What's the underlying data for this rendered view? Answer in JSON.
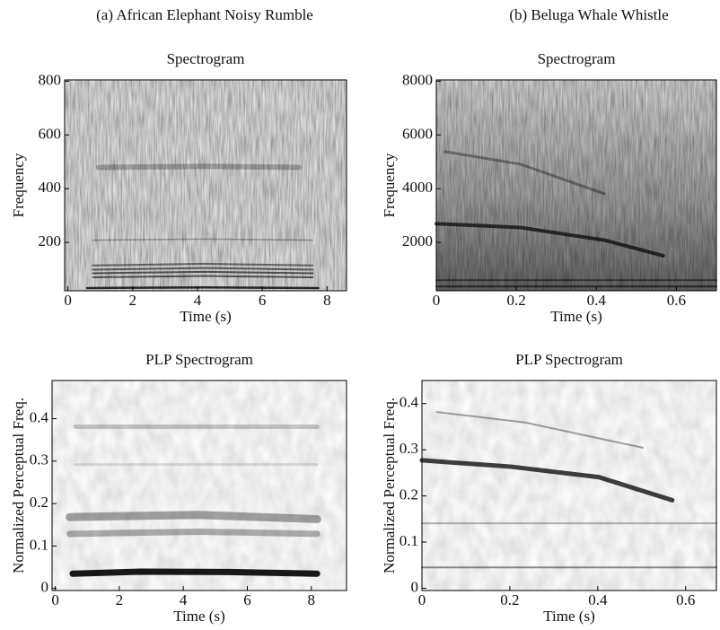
{
  "headers": [
    "(a) African Elephant Noisy Rumble",
    "(b) Beluga Whale Whistle"
  ],
  "chart_data": [
    {
      "type": "spectrogram",
      "title": "Spectrogram",
      "xlabel": "Time (s)",
      "ylabel": "Frequency",
      "xlim": [
        -0.1,
        8.6
      ],
      "xticks": [
        0,
        2,
        4,
        6,
        8
      ],
      "ylim": [
        20,
        805
      ],
      "yticks": [
        200,
        400,
        600,
        800
      ]
    },
    {
      "type": "spectrogram",
      "title": "Spectrogram",
      "xlabel": "Time (s)",
      "ylabel": "Frequency",
      "xlim": [
        0,
        0.7
      ],
      "xticks": [
        0,
        0.2,
        0.4,
        0.6
      ],
      "ylim": [
        200,
        8050
      ],
      "yticks": [
        2000,
        4000,
        6000,
        8000
      ]
    },
    {
      "type": "spectrogram",
      "title": "PLP Spectrogram",
      "xlabel": "Time (s)",
      "ylabel": "Normalized Perceptual Freq.",
      "xlim": [
        -0.1,
        9.1
      ],
      "xticks": [
        0,
        2,
        4,
        6,
        8
      ],
      "ylim": [
        -0.005,
        0.49
      ],
      "yticks": [
        0,
        0.1,
        0.2,
        0.3,
        0.4
      ]
    },
    {
      "type": "spectrogram",
      "title": "PLP Spectrogram",
      "xlabel": "Time (s)",
      "ylabel": "Normalized Perceptual Freq.",
      "xlim": [
        0,
        0.67
      ],
      "xticks": [
        0,
        0.2,
        0.4,
        0.6
      ],
      "ylim": [
        -0.005,
        0.45
      ],
      "yticks": [
        0,
        0.1,
        0.2,
        0.3,
        0.4
      ]
    }
  ]
}
